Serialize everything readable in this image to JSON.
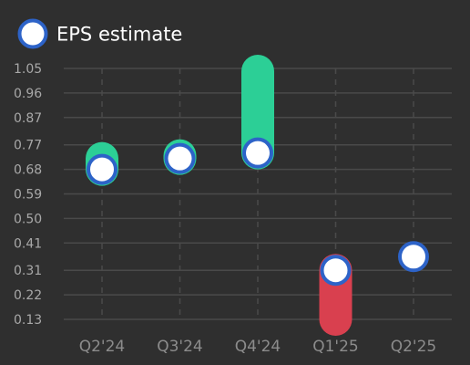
{
  "colors": {
    "background": "#2f2f2f",
    "grid": "#4a4a4a",
    "beat": "#2ccf96",
    "miss": "#d9404f",
    "estimate_fill": "#ffffff",
    "estimate_stroke": "#2d63c8"
  },
  "chart_data": {
    "type": "scatter",
    "title": "",
    "xlabel": "",
    "ylabel": "",
    "legend": {
      "position": "top-left",
      "label": "EPS estimate"
    },
    "grid": true,
    "categories": [
      "Q2'24",
      "Q3'24",
      "Q4'24",
      "Q1'25",
      "Q2'25"
    ],
    "yticks": [
      "1.05",
      "0.96",
      "0.87",
      "0.77",
      "0.68",
      "0.59",
      "0.50",
      "0.41",
      "0.31",
      "0.22",
      "0.13"
    ],
    "ylim": [
      0.13,
      1.05
    ],
    "series": [
      {
        "name": "EPS estimate",
        "values": [
          0.68,
          0.72,
          0.74,
          0.31,
          0.36
        ]
      },
      {
        "values": [
          0.72,
          0.73,
          1.04,
          0.13,
          null
        ]
      }
    ]
  }
}
